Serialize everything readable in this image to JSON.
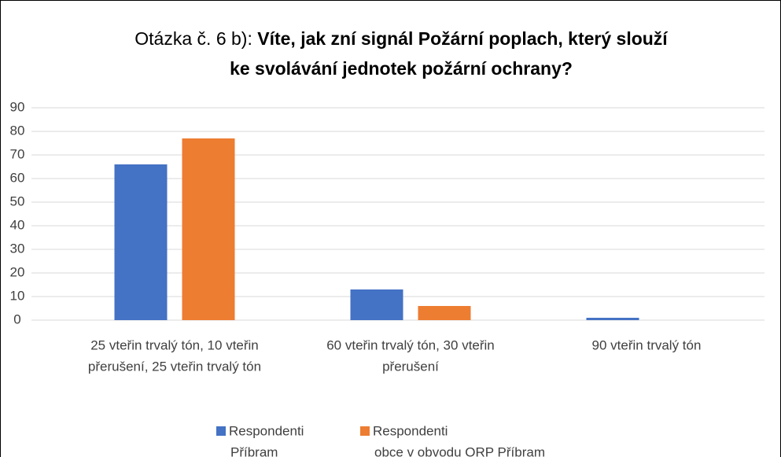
{
  "chart_data": {
    "type": "bar",
    "title_prefix": "Otázka č. 6 b):",
    "title_lines": [
      "Víte, jak zní signál Požární poplach, který slouží",
      "ke svolávání jednotek požární ochrany?"
    ],
    "categories": [
      [
        "25 vteřin trvalý tón, 10 vteřin",
        "přerušení, 25 vteřin trvalý tón"
      ],
      [
        "60 vteřin trvalý tón, 30 vteřin",
        "přerušení"
      ],
      [
        "90 vteřin trvalý tón"
      ]
    ],
    "series": [
      {
        "name": [
          "Respondenti",
          "Příbram"
        ],
        "color": "#4472c4",
        "values": [
          66,
          13,
          1
        ]
      },
      {
        "name": [
          "Respondenti",
          "obce v obvodu ORP Příbram"
        ],
        "color": "#ed7d31",
        "values": [
          77,
          6,
          0
        ]
      }
    ],
    "ylim": [
      0,
      90
    ],
    "yticks": [
      0,
      10,
      20,
      30,
      40,
      50,
      60,
      70,
      80,
      90
    ],
    "grid": true,
    "legend": "bottom"
  }
}
